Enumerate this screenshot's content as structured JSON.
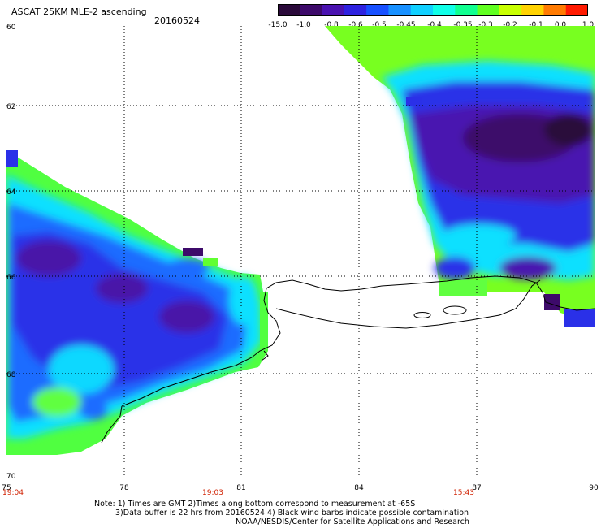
{
  "header": {
    "title": "ASCAT 25KM MLE-2 ascending",
    "date": "20160524"
  },
  "colorbar": {
    "labels": [
      "-15.0",
      "-1.0",
      "-0.8",
      "-0.6",
      "-0.5",
      "-0.45",
      "-0.4",
      "-0.35",
      "-0.3",
      "-0.2",
      "-0.1",
      "0.0",
      "1.0"
    ],
    "colors": [
      "#2a0a3a",
      "#3d0a6a",
      "#4a12b0",
      "#2e22e0",
      "#1850ff",
      "#1890ff",
      "#10d0ff",
      "#10ffe8",
      "#10ff90",
      "#60ff20",
      "#c8ff00",
      "#ffd200",
      "#ff7a00",
      "#ff1a00"
    ]
  },
  "map": {
    "lat_labels": [
      "60",
      "62",
      "64",
      "66",
      "68",
      "70"
    ],
    "lon_labels": [
      "75",
      "78",
      "81",
      "84",
      "87",
      "90"
    ],
    "time_labels": [
      "19:04",
      "19:03",
      "15:43"
    ],
    "time_color": "#d02000"
  },
  "notes": {
    "line1": "Note: 1) Times are GMT 2)Times along bottom correspond to measurement at -65S",
    "line2": "3)Data buffer is 22 hrs from 20160524 4) Black wind barbs indicate possible contamination",
    "line3": "NOAA/NESDIS/Center for Satellite Applications and Research"
  }
}
